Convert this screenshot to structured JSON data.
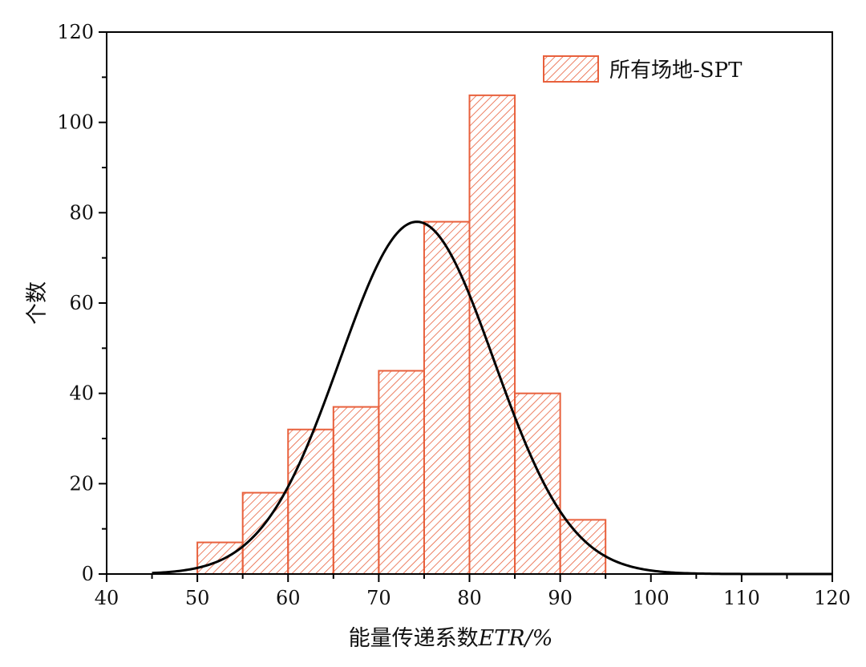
{
  "chart_data": {
    "type": "bar",
    "subtype": "histogram",
    "bins": [
      {
        "start": 50,
        "end": 55,
        "count": 7
      },
      {
        "start": 55,
        "end": 60,
        "count": 18
      },
      {
        "start": 60,
        "end": 65,
        "count": 32
      },
      {
        "start": 65,
        "end": 70,
        "count": 37
      },
      {
        "start": 70,
        "end": 75,
        "count": 45
      },
      {
        "start": 75,
        "end": 80,
        "count": 78
      },
      {
        "start": 80,
        "end": 85,
        "count": 106
      },
      {
        "start": 85,
        "end": 90,
        "count": 40
      },
      {
        "start": 90,
        "end": 95,
        "count": 12
      }
    ],
    "fit_curve": {
      "type": "normal",
      "mean": 74.2,
      "std": 8.5,
      "peak": 78
    },
    "xlabel_prefix": "能量传递系数",
    "xlabel_var": "ETR",
    "xlabel_suffix": "/%",
    "ylabel": "个数",
    "xlim": [
      40,
      120
    ],
    "ylim": [
      0,
      120
    ],
    "xticks": [
      40,
      50,
      60,
      70,
      80,
      90,
      100,
      110,
      120
    ],
    "yticks": [
      0,
      20,
      40,
      60,
      80,
      100,
      120
    ],
    "legend": {
      "label": "所有场地-SPT",
      "position": "top-right"
    },
    "grid": false,
    "colors": {
      "bar_edge": "#e8603c",
      "hatch": "#e8603c",
      "curve": "#000000",
      "axis": "#000000"
    }
  }
}
